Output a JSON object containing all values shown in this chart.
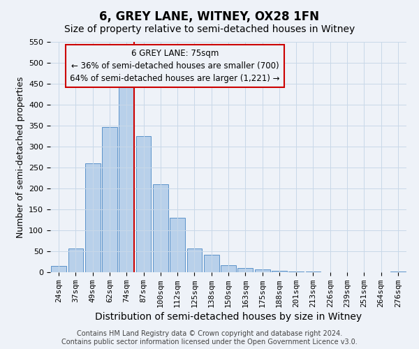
{
  "title": "6, GREY LANE, WITNEY, OX28 1FN",
  "subtitle": "Size of property relative to semi-detached houses in Witney",
  "xlabel": "Distribution of semi-detached houses by size in Witney",
  "ylabel": "Number of semi-detached properties",
  "categories": [
    "24sqm",
    "37sqm",
    "49sqm",
    "62sqm",
    "74sqm",
    "87sqm",
    "100sqm",
    "112sqm",
    "125sqm",
    "138sqm",
    "150sqm",
    "163sqm",
    "175sqm",
    "188sqm",
    "201sqm",
    "213sqm",
    "226sqm",
    "239sqm",
    "251sqm",
    "264sqm",
    "276sqm"
  ],
  "bar_values": [
    15,
    57,
    260,
    347,
    447,
    325,
    210,
    130,
    57,
    42,
    17,
    10,
    7,
    3,
    1,
    1,
    0,
    0,
    0,
    0,
    1
  ],
  "bar_color": "#b8d0ea",
  "bar_edge_color": "#5b92c9",
  "grid_color": "#c8d8e8",
  "background_color": "#eef2f8",
  "property_label": "6 GREY LANE: 75sqm",
  "smaller_pct": 36,
  "smaller_count": 700,
  "larger_pct": 64,
  "larger_count": 1221,
  "vline_color": "#cc0000",
  "annotation_box_edge_color": "#cc0000",
  "ylim": [
    0,
    550
  ],
  "yticks": [
    0,
    50,
    100,
    150,
    200,
    250,
    300,
    350,
    400,
    450,
    500,
    550
  ],
  "footer_line1": "Contains HM Land Registry data © Crown copyright and database right 2024.",
  "footer_line2": "Contains public sector information licensed under the Open Government Licence v3.0.",
  "title_fontsize": 12,
  "subtitle_fontsize": 10,
  "xlabel_fontsize": 10,
  "ylabel_fontsize": 9,
  "tick_fontsize": 8,
  "footer_fontsize": 7,
  "annotation_fontsize": 8.5,
  "vline_bar_index": 4
}
